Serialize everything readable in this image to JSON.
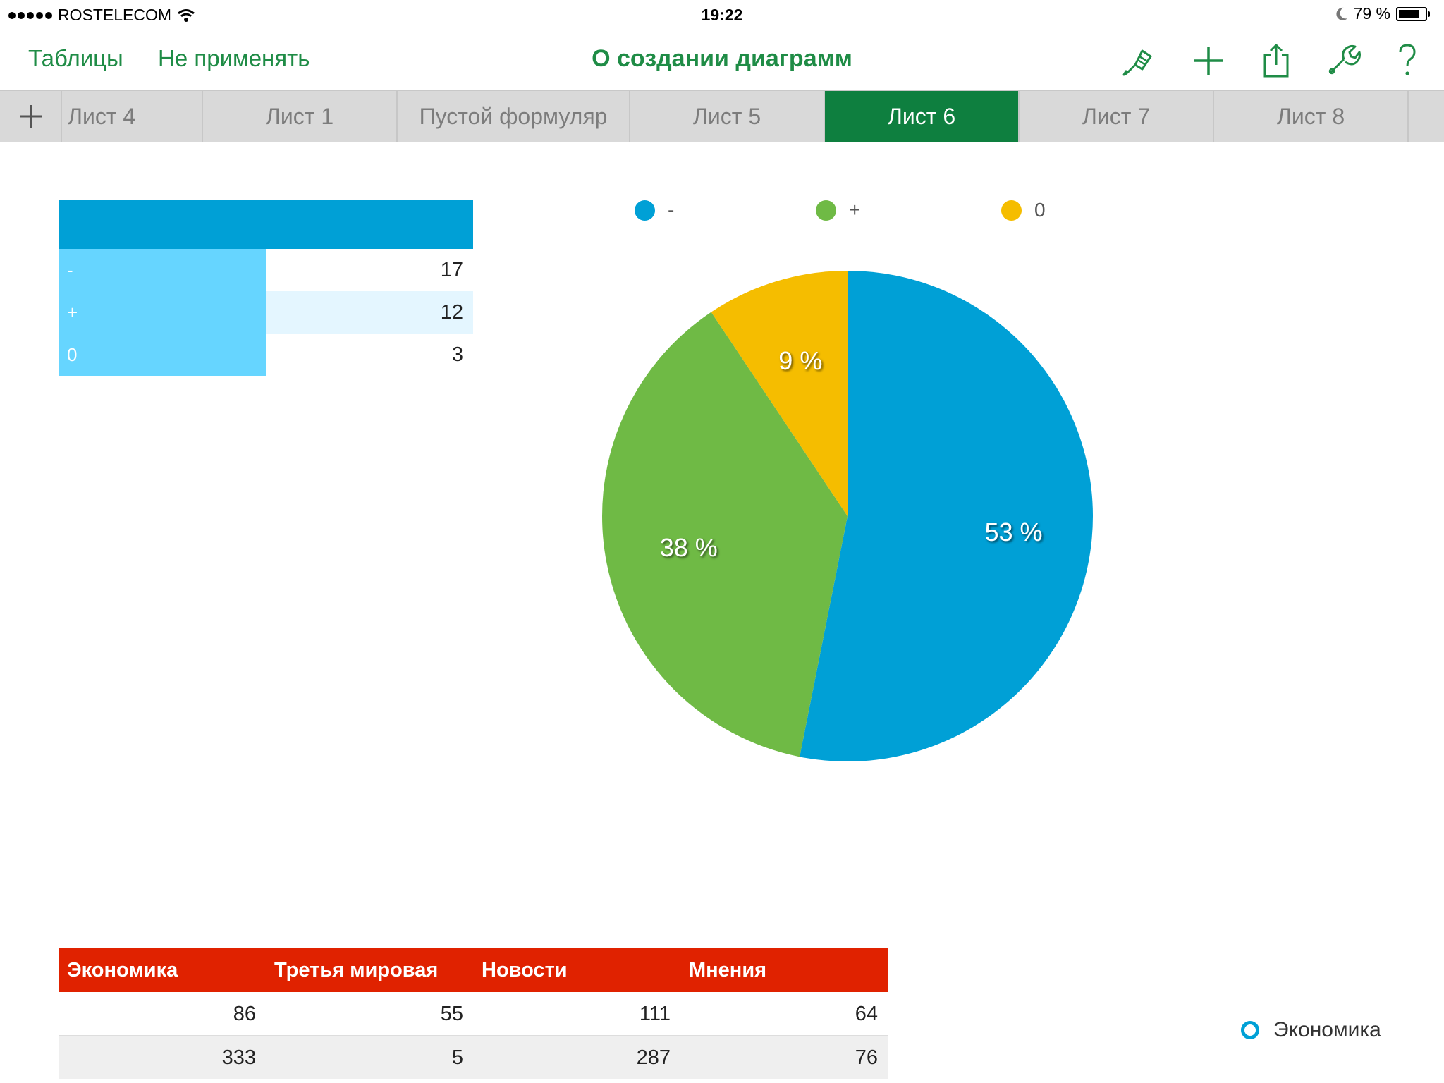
{
  "status_bar": {
    "carrier": "ROSTELECOM",
    "time": "19:22",
    "battery": "79 %",
    "battery_level": 0.79
  },
  "toolbar": {
    "back_label": "Таблицы",
    "undo_label": "Не применять",
    "title": "О создании диаграмм",
    "icons": [
      "paintbrush-icon",
      "plus-icon",
      "share-icon",
      "wrench-icon",
      "help-icon"
    ]
  },
  "tabs": [
    "Лист 4",
    "Лист 1",
    "Пустой формуляр",
    "Лист 5",
    "Лист 6",
    "Лист 7",
    "Лист 8"
  ],
  "active_tab": "Лист 6",
  "small_table": {
    "header": "",
    "rows": [
      {
        "label": "-",
        "value": "17"
      },
      {
        "label": "+",
        "value": "12"
      },
      {
        "label": "0",
        "value": "3"
      }
    ]
  },
  "chart_data": {
    "type": "pie",
    "title": "",
    "legend_position": "top",
    "slices": [
      {
        "name": "-",
        "value": 17,
        "label": "53 %",
        "color": "#00a0d6"
      },
      {
        "name": "+",
        "value": 12,
        "label": "38 %",
        "color": "#6fba45"
      },
      {
        "name": "0",
        "value": 3,
        "label": "9 %",
        "color": "#f5bd00"
      }
    ]
  },
  "big_table": {
    "headers": [
      "Экономика",
      "Третья мировая",
      "Новости",
      "Мнения"
    ],
    "rows": [
      [
        "86",
        "55",
        "111",
        "64"
      ],
      [
        "333",
        "5",
        "287",
        "76"
      ]
    ]
  },
  "mini_legend": {
    "label": "Экономика",
    "color": "#00a0d6"
  },
  "colors": {
    "accent_green": "#1f8c46",
    "active_tab": "#0e7f3f",
    "table_header_blue": "#00a0d6",
    "table_header_red": "#e02200"
  }
}
